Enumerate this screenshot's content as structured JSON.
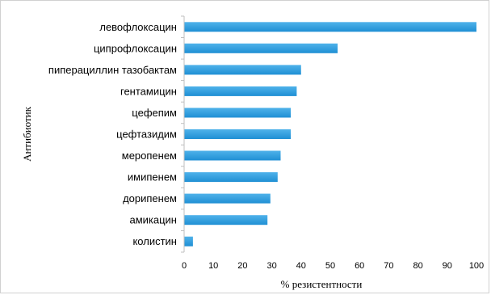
{
  "chart_data": {
    "type": "bar",
    "orientation": "horizontal",
    "categories": [
      "левофлоксацин",
      "ципрофлоксацин",
      "пиперациллин тазобактам",
      "гентамицин",
      "цефепим",
      "цефтазидим",
      "меропенем",
      "имипенем",
      "дорипенем",
      "амикацин",
      "колистин"
    ],
    "values": [
      100,
      52.5,
      40,
      38.5,
      36.5,
      36.5,
      33,
      32,
      29.5,
      28.5,
      3
    ],
    "xlabel": "% резистентности",
    "ylabel": "Антибиотик",
    "xlim": [
      0,
      100
    ],
    "xticks": [
      "0",
      "10",
      "20",
      "30",
      "40",
      "50",
      "60",
      "70",
      "80",
      "90",
      "100"
    ],
    "grid": false,
    "legend": "none",
    "bar_color": "#1f8fd4",
    "bar_color_light": "#4fb2ea"
  }
}
